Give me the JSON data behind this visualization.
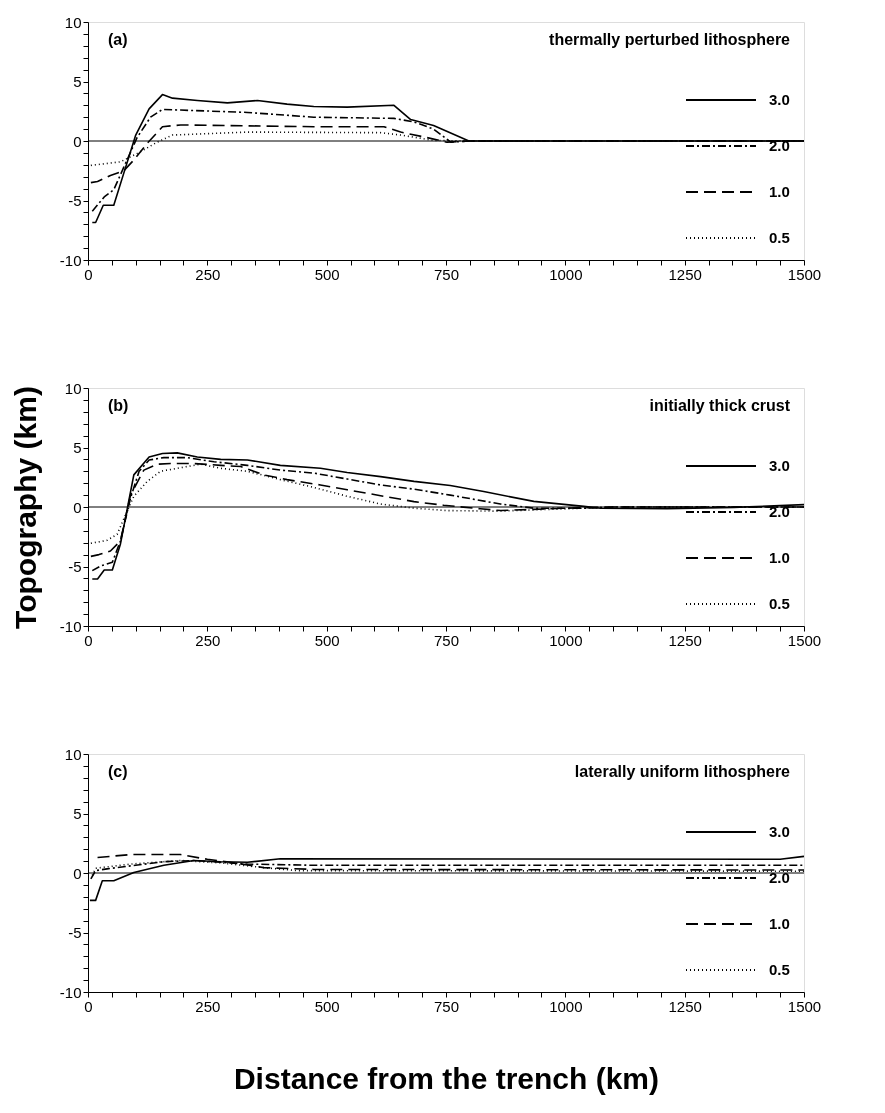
{
  "chart_data": [
    {
      "type": "line",
      "title": "thermally perturbed lithosphere",
      "annotations": [
        "(a)"
      ],
      "xlim": [
        0,
        1500
      ],
      "ylim": [
        -10,
        10
      ],
      "xticks": [
        0,
        {
          "value": 50,
          "label": null
        },
        {
          "value": 100,
          "label": null
        },
        {
          "value": 150,
          "label": null
        },
        {
          "value": 200,
          "label": null
        },
        250,
        {
          "value": 300,
          "label": null
        },
        {
          "value": 350,
          "label": null
        },
        {
          "value": 400,
          "label": null
        },
        {
          "value": 450,
          "label": null
        },
        500,
        {
          "value": 550,
          "label": null
        },
        {
          "value": 600,
          "label": null
        },
        {
          "value": 650,
          "label": null
        },
        {
          "value": 700,
          "label": null
        },
        750,
        {
          "value": 800,
          "label": null
        },
        {
          "value": 850,
          "label": null
        },
        {
          "value": 900,
          "label": null
        },
        {
          "value": 950,
          "label": null
        },
        1000,
        {
          "value": 1050,
          "label": null
        },
        {
          "value": 1100,
          "label": null
        },
        {
          "value": 1150,
          "label": null
        },
        {
          "value": 1200,
          "label": null
        },
        1250,
        {
          "value": 1300,
          "label": null
        },
        {
          "value": 1350,
          "label": null
        },
        {
          "value": 1400,
          "label": null
        },
        {
          "value": 1450,
          "label": null
        },
        1500
      ],
      "yticks": [
        -10,
        {
          "value": -9,
          "label": null
        },
        {
          "value": -8,
          "label": null
        },
        {
          "value": -7,
          "label": null
        },
        {
          "value": -6,
          "label": null
        },
        -5,
        {
          "value": -4,
          "label": null
        },
        {
          "value": -3,
          "label": null
        },
        {
          "value": -2,
          "label": null
        },
        {
          "value": -1,
          "label": null
        },
        0,
        {
          "value": 1,
          "label": null
        },
        {
          "value": 2,
          "label": null
        },
        {
          "value": 3,
          "label": null
        },
        {
          "value": 4,
          "label": null
        },
        5,
        {
          "value": 6,
          "label": null
        },
        {
          "value": 7,
          "label": null
        },
        {
          "value": 8,
          "label": null
        },
        {
          "value": 9,
          "label": null
        },
        10
      ],
      "grid": false,
      "legend": "bottom right",
      "ref_lines": [
        {
          "axis": "y",
          "value": 0,
          "label": null,
          "color": "#000000"
        }
      ],
      "series": [
        {
          "name": "3.0",
          "color": "#000000",
          "line_style": "solid",
          "x": [
            9,
            16,
            32,
            54,
            75,
            100,
            128,
            156,
            177,
            229,
            292,
            355,
            417,
            473,
            543,
            641,
            676,
            724,
            798,
            1500
          ],
          "values": [
            -6.85,
            -6.85,
            -5.4,
            -5.4,
            -2.7,
            0.5,
            2.7,
            3.9,
            3.6,
            3.4,
            3.2,
            3.4,
            3.1,
            2.9,
            2.85,
            3.0,
            1.8,
            1.3,
            0,
            0
          ]
        },
        {
          "name": "2.0",
          "color": "#000000",
          "line_style": "dashdot",
          "x": [
            9,
            34,
            54,
            75,
            103,
            131,
            156,
            194,
            334,
            473,
            641,
            683,
            724,
            760,
            798,
            1500
          ],
          "values": [
            -5.9,
            -4.7,
            -4.1,
            -2.2,
            0.3,
            2.0,
            2.65,
            2.6,
            2.4,
            2.0,
            1.9,
            1.6,
            1.0,
            -0.1,
            0,
            0
          ]
        },
        {
          "name": "1.0",
          "color": "#000000",
          "line_style": "dashed",
          "x": [
            6,
            20,
            47,
            75,
            96,
            124,
            156,
            194,
            473,
            620,
            655,
            703,
            752,
            798,
            1500
          ],
          "values": [
            -3.5,
            -3.4,
            -2.9,
            -2.5,
            -1.6,
            -0.2,
            1.2,
            1.35,
            1.2,
            1.2,
            0.75,
            0.35,
            -0.1,
            0,
            0
          ]
        },
        {
          "name": "0.5",
          "color": "#000000",
          "line_style": "dotted",
          "x": [
            6,
            68,
            103,
            145,
            177,
            334,
            613,
            655,
            724,
            798,
            1500
          ],
          "values": [
            -2.05,
            -1.75,
            -1.05,
            -0.1,
            0.5,
            0.75,
            0.7,
            0.5,
            0.05,
            0,
            0
          ]
        }
      ]
    },
    {
      "type": "line",
      "title": "initially thick crust",
      "annotations": [
        "(b)"
      ],
      "ylabel": "Topography (km)",
      "xlim": [
        0,
        1500
      ],
      "ylim": [
        -10,
        10
      ],
      "xticks": [
        0,
        {
          "value": 50,
          "label": null
        },
        {
          "value": 100,
          "label": null
        },
        {
          "value": 150,
          "label": null
        },
        {
          "value": 200,
          "label": null
        },
        250,
        {
          "value": 300,
          "label": null
        },
        {
          "value": 350,
          "label": null
        },
        {
          "value": 400,
          "label": null
        },
        {
          "value": 450,
          "label": null
        },
        500,
        {
          "value": 550,
          "label": null
        },
        {
          "value": 600,
          "label": null
        },
        {
          "value": 650,
          "label": null
        },
        {
          "value": 700,
          "label": null
        },
        750,
        {
          "value": 800,
          "label": null
        },
        {
          "value": 850,
          "label": null
        },
        {
          "value": 900,
          "label": null
        },
        {
          "value": 950,
          "label": null
        },
        1000,
        {
          "value": 1050,
          "label": null
        },
        {
          "value": 1100,
          "label": null
        },
        {
          "value": 1150,
          "label": null
        },
        {
          "value": 1200,
          "label": null
        },
        1250,
        {
          "value": 1300,
          "label": null
        },
        {
          "value": 1350,
          "label": null
        },
        {
          "value": 1400,
          "label": null
        },
        {
          "value": 1450,
          "label": null
        },
        1500
      ],
      "yticks": [
        -10,
        {
          "value": -9,
          "label": null
        },
        {
          "value": -8,
          "label": null
        },
        {
          "value": -7,
          "label": null
        },
        {
          "value": -6,
          "label": null
        },
        -5,
        {
          "value": -4,
          "label": null
        },
        {
          "value": -3,
          "label": null
        },
        {
          "value": -2,
          "label": null
        },
        {
          "value": -1,
          "label": null
        },
        0,
        {
          "value": 1,
          "label": null
        },
        {
          "value": 2,
          "label": null
        },
        {
          "value": 3,
          "label": null
        },
        {
          "value": 4,
          "label": null
        },
        5,
        {
          "value": 6,
          "label": null
        },
        {
          "value": 7,
          "label": null
        },
        {
          "value": 8,
          "label": null
        },
        {
          "value": 9,
          "label": null
        },
        10
      ],
      "grid": false,
      "legend": "bottom right",
      "ref_lines": [
        {
          "axis": "y",
          "value": 0,
          "label": null,
          "color": "#000000"
        }
      ],
      "series": [
        {
          "name": "3.0",
          "color": "#000000",
          "line_style": "solid",
          "x": [
            9,
            20,
            34,
            51,
            68,
            96,
            128,
            156,
            187,
            229,
            278,
            334,
            403,
            487,
            543,
            613,
            683,
            759,
            829,
            934,
            1039,
            1074,
            1213,
            1353,
            1500
          ],
          "values": [
            -6.05,
            -6.05,
            -5.3,
            -5.3,
            -3.1,
            2.7,
            4.2,
            4.5,
            4.55,
            4.2,
            4.0,
            3.95,
            3.5,
            3.25,
            2.9,
            2.55,
            2.15,
            1.8,
            1.3,
            0.47,
            0.05,
            -0.1,
            -0.15,
            -0.03,
            0.2
          ]
        },
        {
          "name": "2.0",
          "color": "#000000",
          "line_style": "dashdot",
          "x": [
            9,
            27,
            51,
            68,
            89,
            107,
            128,
            159,
            208,
            264,
            334,
            403,
            473,
            543,
            613,
            683,
            759,
            864,
            934,
            1039,
            1100,
            1500
          ],
          "values": [
            -5.35,
            -4.95,
            -4.65,
            -2.85,
            0.75,
            3.0,
            3.95,
            4.15,
            4.15,
            3.8,
            3.5,
            3.1,
            2.85,
            2.35,
            1.85,
            1.5,
            1.0,
            0.25,
            -0.1,
            -0.1,
            0,
            0
          ]
        },
        {
          "name": "1.0",
          "color": "#000000",
          "line_style": "dashed",
          "x": [
            6,
            23,
            47,
            68,
            89,
            117,
            145,
            173,
            222,
            278,
            320,
            368,
            417,
            487,
            543,
            613,
            683,
            745,
            822,
            865,
            1000,
            1100,
            1500
          ],
          "values": [
            -4.15,
            -4.0,
            -3.7,
            -2.85,
            1.0,
            3.1,
            3.6,
            3.65,
            3.65,
            3.5,
            3.4,
            2.7,
            2.3,
            1.85,
            1.45,
            0.95,
            0.45,
            0.15,
            -0.15,
            -0.3,
            -0.1,
            0,
            0
          ]
        },
        {
          "name": "0.5",
          "color": "#000000",
          "line_style": "dotted",
          "x": [
            6,
            40,
            61,
            82,
            96,
            124,
            152,
            194,
            236,
            278,
            334,
            403,
            473,
            543,
            613,
            683,
            752,
            858,
            1039,
            1100,
            1500
          ],
          "values": [
            -3.05,
            -2.8,
            -2.3,
            -0.35,
            0.9,
            2.15,
            3.0,
            3.3,
            3.6,
            3.25,
            3.0,
            2.3,
            1.65,
            0.9,
            0.25,
            -0.1,
            -0.3,
            -0.35,
            -0.1,
            0,
            0
          ]
        }
      ]
    },
    {
      "type": "line",
      "title": "laterally uniform lithosphere",
      "annotations": [
        "(c)"
      ],
      "xlabel": "Distance from the trench (km)",
      "xlim": [
        0,
        1500
      ],
      "ylim": [
        -10,
        10
      ],
      "xticks": [
        0,
        {
          "value": 50,
          "label": null
        },
        {
          "value": 100,
          "label": null
        },
        {
          "value": 150,
          "label": null
        },
        {
          "value": 200,
          "label": null
        },
        250,
        {
          "value": 300,
          "label": null
        },
        {
          "value": 350,
          "label": null
        },
        {
          "value": 400,
          "label": null
        },
        {
          "value": 450,
          "label": null
        },
        500,
        {
          "value": 550,
          "label": null
        },
        {
          "value": 600,
          "label": null
        },
        {
          "value": 650,
          "label": null
        },
        {
          "value": 700,
          "label": null
        },
        750,
        {
          "value": 800,
          "label": null
        },
        {
          "value": 850,
          "label": null
        },
        {
          "value": 900,
          "label": null
        },
        {
          "value": 950,
          "label": null
        },
        1000,
        {
          "value": 1050,
          "label": null
        },
        {
          "value": 1100,
          "label": null
        },
        {
          "value": 1150,
          "label": null
        },
        {
          "value": 1200,
          "label": null
        },
        1250,
        {
          "value": 1300,
          "label": null
        },
        {
          "value": 1350,
          "label": null
        },
        {
          "value": 1400,
          "label": null
        },
        {
          "value": 1450,
          "label": null
        },
        1500
      ],
      "yticks": [
        -10,
        {
          "value": -9,
          "label": null
        },
        {
          "value": -8,
          "label": null
        },
        {
          "value": -7,
          "label": null
        },
        {
          "value": -6,
          "label": null
        },
        -5,
        {
          "value": -4,
          "label": null
        },
        {
          "value": -3,
          "label": null
        },
        {
          "value": -2,
          "label": null
        },
        {
          "value": -1,
          "label": null
        },
        0,
        {
          "value": 1,
          "label": null
        },
        {
          "value": 2,
          "label": null
        },
        {
          "value": 3,
          "label": null
        },
        {
          "value": 4,
          "label": null
        },
        5,
        {
          "value": 6,
          "label": null
        },
        {
          "value": 7,
          "label": null
        },
        {
          "value": 8,
          "label": null
        },
        {
          "value": 9,
          "label": null
        },
        10
      ],
      "grid": false,
      "legend": "bottom right",
      "ref_lines": [
        {
          "axis": "y",
          "value": 0,
          "label": null,
          "color": "#000000"
        }
      ],
      "series": [
        {
          "name": "3.0",
          "color": "#000000",
          "line_style": "solid",
          "x": [
            4,
            16,
            30,
            54,
            96,
            159,
            222,
            278,
            334,
            403,
            1450,
            1500
          ],
          "values": [
            -2.3,
            -2.3,
            -0.65,
            -0.65,
            0.05,
            0.65,
            1.05,
            0.95,
            0.9,
            1.2,
            1.15,
            1.4
          ]
        },
        {
          "name": "2.0",
          "color": "#000000",
          "line_style": "dashdot",
          "x": [
            6,
            16,
            40,
            89,
            159,
            222,
            278,
            334,
            473,
            1500
          ],
          "values": [
            -0.5,
            0.2,
            0.35,
            0.6,
            0.95,
            1.05,
            0.9,
            0.75,
            0.65,
            0.65
          ]
        },
        {
          "name": "1.0",
          "color": "#000000",
          "line_style": "dashed",
          "x": [
            20,
            89,
            194,
            250,
            299,
            368,
            473,
            1500
          ],
          "values": [
            1.3,
            1.55,
            1.55,
            1.15,
            0.9,
            0.45,
            0.3,
            0.25
          ]
        },
        {
          "name": "0.5",
          "color": "#000000",
          "line_style": "dotted",
          "x": [
            9,
            16,
            89,
            194,
            278,
            368,
            438,
            1500
          ],
          "values": [
            -0.2,
            0.4,
            0.75,
            1.05,
            0.85,
            0.45,
            0.2,
            0.15
          ]
        }
      ]
    }
  ]
}
